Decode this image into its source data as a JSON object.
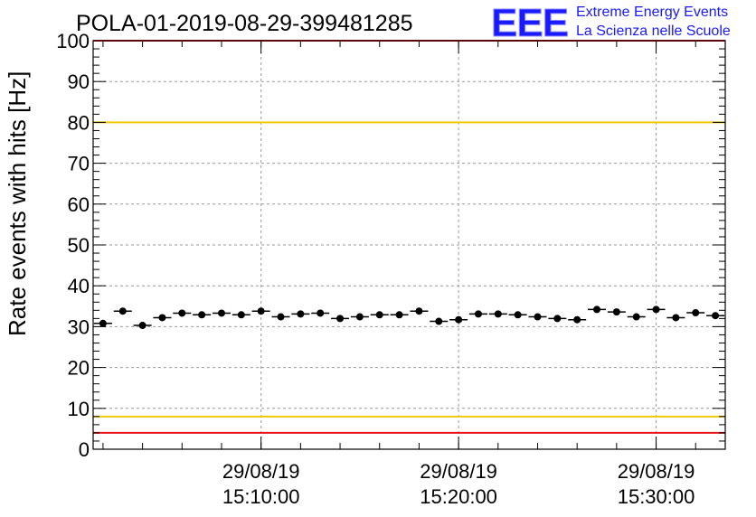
{
  "chart_data": {
    "type": "scatter",
    "title": "POLA-01-2019-08-29-399481285",
    "ylabel": "Rate events with hits [Hz]",
    "xlabel": "",
    "ylim": [
      0,
      100
    ],
    "y_ticks": [
      0,
      10,
      20,
      30,
      40,
      50,
      60,
      70,
      80,
      90,
      100
    ],
    "x_tick_labels": [
      {
        "date": "29/08/19",
        "time": "15:10:00"
      },
      {
        "date": "29/08/19",
        "time": "15:20:00"
      },
      {
        "date": "29/08/19",
        "time": "15:30:00"
      }
    ],
    "x_tick_times": [
      "15:10:00",
      "15:20:00",
      "15:30:00"
    ],
    "xlim": [
      "15:01:30",
      "15:33:30"
    ],
    "grid": true,
    "reference_lines": [
      {
        "y": 100,
        "color": "#e8141c"
      },
      {
        "y": 80,
        "color": "#f0c800"
      },
      {
        "y": 8,
        "color": "#f0c800"
      },
      {
        "y": 4,
        "color": "#e8141c"
      }
    ],
    "series": [
      {
        "color": "#000000",
        "x": [
          "15:02:00",
          "15:03:00",
          "15:04:00",
          "15:05:00",
          "15:06:00",
          "15:07:00",
          "15:08:00",
          "15:09:00",
          "15:10:00",
          "15:11:00",
          "15:12:00",
          "15:13:00",
          "15:14:00",
          "15:15:00",
          "15:16:00",
          "15:17:00",
          "15:18:00",
          "15:19:00",
          "15:20:00",
          "15:21:00",
          "15:22:00",
          "15:23:00",
          "15:24:00",
          "15:25:00",
          "15:26:00",
          "15:27:00",
          "15:28:00",
          "15:29:00",
          "15:30:00",
          "15:31:00",
          "15:32:00",
          "15:33:00"
        ],
        "values": [
          30.8,
          33.8,
          30.3,
          32.2,
          33.3,
          32.9,
          33.3,
          32.9,
          33.8,
          32.4,
          33.1,
          33.3,
          32.0,
          32.4,
          32.9,
          32.9,
          33.8,
          31.3,
          31.7,
          33.1,
          33.1,
          32.9,
          32.4,
          32.0,
          31.7,
          34.2,
          33.6,
          32.4,
          34.2,
          32.2,
          33.4,
          32.7
        ]
      }
    ]
  },
  "logo": {
    "mark": "EEE",
    "line1": "Extreme Energy Events",
    "line2": "La Scienza nelle Scuole",
    "color": "#1a1aff"
  }
}
